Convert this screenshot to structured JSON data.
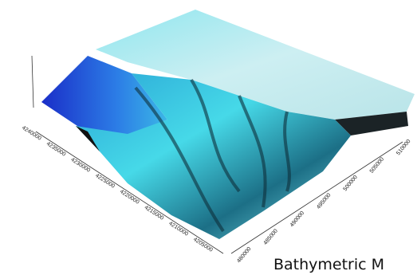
{
  "northing_labels": [
    "4240000",
    "4235000",
    "4230000",
    "4225000",
    "4220000",
    "4215000",
    "4210000",
    "4205000"
  ],
  "easting_labels": [
    "480000",
    "485000",
    "490000",
    "495000",
    "500000",
    "505000",
    "510000"
  ],
  "caption": "Bathymetric M"
}
